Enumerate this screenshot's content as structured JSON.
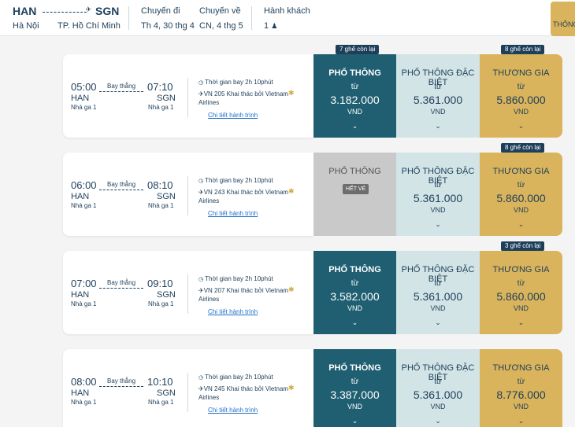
{
  "header": {
    "from_code": "HAN",
    "to_code": "SGN",
    "from_city": "Hà Nội",
    "to_city": "TP. Hồ Chí Minh",
    "depart_label": "Chuyến đi",
    "depart_value": "Th 4, 30 thg 4",
    "return_label": "Chuyến về",
    "return_value": "CN, 4 thg 5",
    "pax_label": "Hành khách",
    "pax_value": "1",
    "right_tab": "THÔNG"
  },
  "labels": {
    "direct": "Bay thẳng",
    "terminal": "Nhà ga 1",
    "detail": "Chi tiết hành trình",
    "from": "từ",
    "currency": "VND",
    "eco": "PHỔ THÔNG",
    "special": "PHỔ THÔNG ĐẶC BIỆT",
    "business": "THƯƠNG GIA",
    "soldout": "HẾT VÉ"
  },
  "flights": [
    {
      "dep_time": "05:00",
      "arr_time": "07:10",
      "dep_code": "HAN",
      "arr_code": "SGN",
      "duration": "Thời gian bay 2h 10phút",
      "operator": "VN 205 Khai thác bởi Vietnam Airlines",
      "eco_badge": "7 ghế còn lại",
      "eco_price": "3.182.000",
      "special_price": "5.361.000",
      "bus_badge": "8 ghế còn lại",
      "bus_price": "5.860.000"
    },
    {
      "dep_time": "06:00",
      "arr_time": "08:10",
      "dep_code": "HAN",
      "arr_code": "SGN",
      "duration": "Thời gian bay 2h 10phút",
      "operator": "VN 243 Khai thác bởi Vietnam Airlines",
      "special_price": "5.361.000",
      "bus_badge": "8 ghế còn lại",
      "bus_price": "5.860.000"
    },
    {
      "dep_time": "07:00",
      "arr_time": "09:10",
      "dep_code": "HAN",
      "arr_code": "SGN",
      "duration": "Thời gian bay 2h 10phút",
      "operator": "VN 207 Khai thác bởi Vietnam Airlines",
      "eco_price": "3.582.000",
      "special_price": "5.361.000",
      "bus_badge": "3 ghế còn lại",
      "bus_price": "5.860.000"
    },
    {
      "dep_time": "08:00",
      "arr_time": "10:10",
      "dep_code": "HAN",
      "arr_code": "SGN",
      "duration": "Thời gian bay 2h 10phút",
      "operator": "VN 245 Khai thác bởi Vietnam Airlines",
      "eco_price": "3.387.000",
      "special_price": "5.361.000",
      "bus_price": "8.776.000"
    }
  ]
}
